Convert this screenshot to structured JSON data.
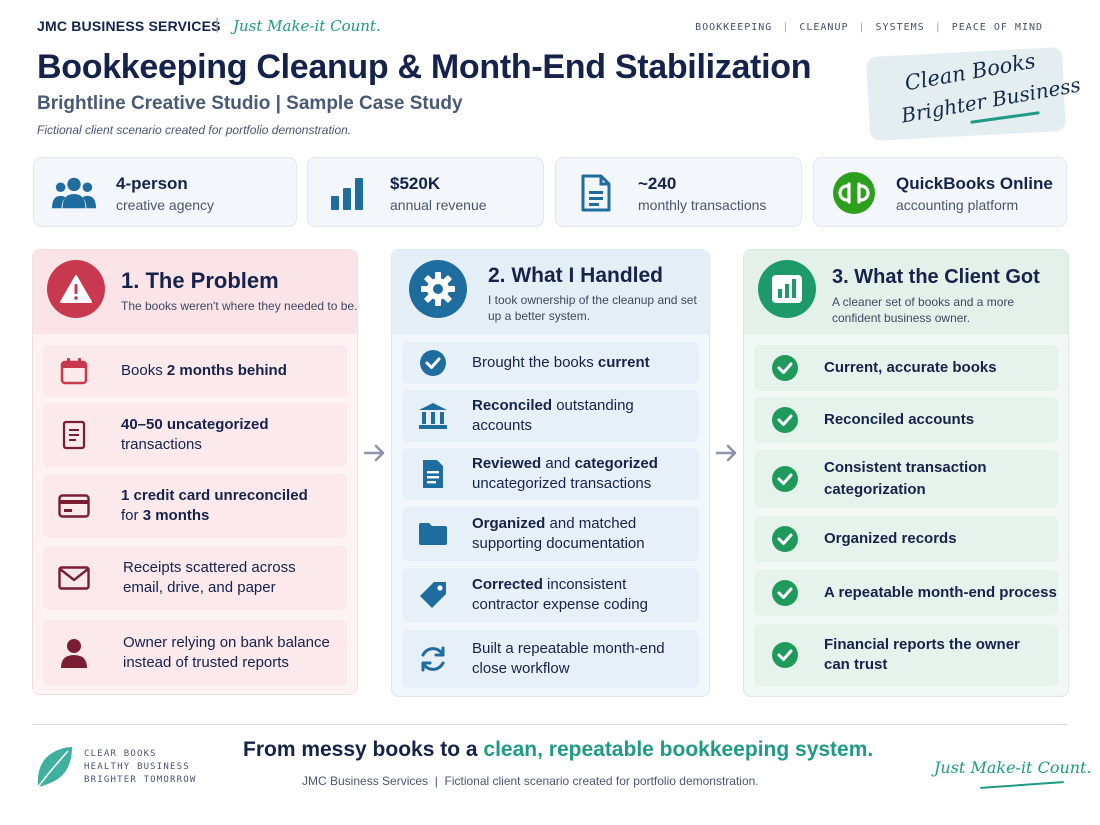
{
  "header": {
    "brand": "JMC BUSINESS SERVICES",
    "separator": "|",
    "tagline": "Just Make-it Count.",
    "nav": [
      "BOOKKEEPING",
      "CLEANUP",
      "SYSTEMS",
      "PEACE OF MIND"
    ],
    "nav_separator": "|",
    "title": "Bookkeeping Cleanup & Month-End Stabilization",
    "subtitle": "Brightline Creative Studio | Sample Case Study",
    "disclaimer": "Fictional client scenario created for portfolio demonstration.",
    "stamp_line1": "Clean Books",
    "stamp_line2": "Brighter Business"
  },
  "stats": [
    {
      "big": "4-person",
      "small": "creative agency",
      "icon": "team-icon"
    },
    {
      "big": "$520K",
      "small": "annual revenue",
      "icon": "bar-chart-icon"
    },
    {
      "big": "~240",
      "small": "monthly transactions",
      "icon": "document-icon"
    },
    {
      "big": "QuickBooks Online",
      "small": "accounting platform",
      "icon": "quickbooks-logo-icon"
    }
  ],
  "columns": {
    "problem": {
      "title": "1. The Problem",
      "desc": "The books weren't where they needed to be.",
      "items": [
        {
          "pre": "Books ",
          "bold": "2 months behind",
          "post": ""
        },
        {
          "pre": "",
          "bold": "40–50 uncategorized",
          "post": "transactions"
        },
        {
          "pre": "",
          "bold": "1 credit card unreconciled",
          "post": "for ",
          "bold2": "3 months"
        },
        {
          "line1": "Receipts scattered across",
          "line2": "email, drive, and paper"
        },
        {
          "line1": "Owner relying on bank balance",
          "line2": "instead of trusted reports"
        }
      ]
    },
    "handled": {
      "title": "2. What I Handled",
      "desc": "I took ownership of the cleanup and set up a better system.",
      "items": [
        {
          "pre": "Brought the books ",
          "bold": "current",
          "post": ""
        },
        {
          "bold": "Reconciled",
          "rest": " outstanding",
          "line2": "accounts"
        },
        {
          "bold": "Reviewed",
          "rest": " and ",
          "bold2": "categorized",
          "line2": "uncategorized transactions"
        },
        {
          "bold": "Organized",
          "rest": " and matched",
          "line2": "supporting documentation"
        },
        {
          "bold": "Corrected",
          "rest": " inconsistent",
          "line2": "contractor expense coding"
        },
        {
          "line1": "Built a repeatable month-end",
          "line2": "close workflow"
        }
      ]
    },
    "got": {
      "title": "3. What the Client Got",
      "desc": "A cleaner set of books and a more confident business owner.",
      "items": [
        {
          "line1": "Current, accurate books"
        },
        {
          "line1": "Reconciled accounts"
        },
        {
          "line1": "Consistent transaction",
          "line2": "categorization"
        },
        {
          "line1": "Organized records"
        },
        {
          "line1": "A repeatable month-end process"
        },
        {
          "line1": "Financial reports the owner",
          "line2": "can trust"
        }
      ]
    }
  },
  "footer": {
    "small_lines": [
      "CLEAR BOOKS",
      "HEALTHY BUSINESS",
      "BRIGHTER TOMORROW"
    ],
    "tagline_pre": "From messy books to a ",
    "tagline_hl": "clean, repeatable bookkeeping system.",
    "meta": "JMC Business Services  |  Fictional client scenario created for portfolio demonstration.",
    "signature": "Just Make-it Count."
  },
  "colors": {
    "navy": "#15224a",
    "teal": "#1e9a86",
    "problem_red": "#c8394f",
    "problem_dark": "#7a1d33",
    "handled_blue": "#1f6c9e",
    "got_green": "#1f9a5a"
  }
}
